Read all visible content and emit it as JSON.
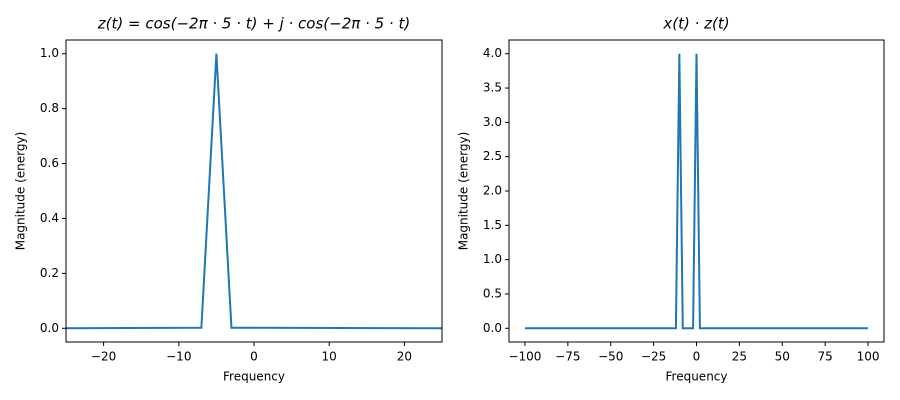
{
  "chart_data": [
    {
      "type": "line",
      "title": "z(t) = cos(−2π · 5 · t) + j · cos(−2π · 5 · t)",
      "x_label": "Frequency",
      "y_label": "Magnitude (energy)",
      "x": [
        -25,
        -7,
        -5,
        -3,
        25
      ],
      "values": [
        0,
        0.002,
        1,
        0.002,
        0
      ],
      "color": "#1f77b4",
      "xlim": [
        -25,
        25
      ],
      "ylim": [
        -0.05,
        1.05
      ],
      "xticks": [
        {
          "value": -20,
          "label": "−20"
        },
        {
          "value": -10,
          "label": "−10"
        },
        0,
        10,
        20
      ],
      "yticks": [
        {
          "value": 0,
          "label": "0.0"
        },
        {
          "value": 0.2,
          "label": "0.2"
        },
        {
          "value": 0.4,
          "label": "0.4"
        },
        {
          "value": 0.6,
          "label": "0.6"
        },
        {
          "value": 0.8,
          "label": "0.8"
        },
        {
          "value": 1,
          "label": "1.0"
        }
      ]
    },
    {
      "type": "line",
      "title": "x(t) · z(t)",
      "x_label": "Frequency",
      "y_label": "Magnitude (energy)",
      "x": [
        -100,
        -12,
        -10,
        -8,
        -2,
        0,
        2,
        100
      ],
      "values": [
        0,
        0,
        4,
        0,
        0,
        4,
        0,
        0
      ],
      "color": "#1f77b4",
      "xlim": [
        -109.3,
        109.3
      ],
      "ylim": [
        -0.2,
        4.2
      ],
      "xticks": [
        {
          "value": -100,
          "label": "−100"
        },
        {
          "value": -75,
          "label": "−75"
        },
        {
          "value": -50,
          "label": "−50"
        },
        {
          "value": -25,
          "label": "−25"
        },
        0,
        25,
        50,
        75,
        100
      ],
      "yticks": [
        {
          "value": 0,
          "label": "0.0"
        },
        {
          "value": 0.5,
          "label": "0.5"
        },
        {
          "value": 1,
          "label": "1.0"
        },
        {
          "value": 1.5,
          "label": "1.5"
        },
        {
          "value": 2,
          "label": "2.0"
        },
        {
          "value": 2.5,
          "label": "2.5"
        },
        {
          "value": 3,
          "label": "3.0"
        },
        {
          "value": 3.5,
          "label": "3.5"
        },
        {
          "value": 4,
          "label": "4.0"
        }
      ]
    }
  ]
}
